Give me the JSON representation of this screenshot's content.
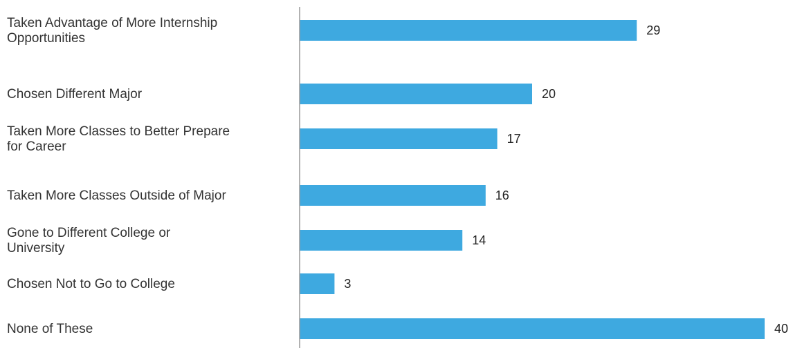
{
  "chart_data": {
    "type": "bar",
    "orientation": "horizontal",
    "categories": [
      "Taken Advantage of More Internship Opportunities",
      "Chosen Different Major",
      "Taken More Classes to Better Prepare for Career",
      "Taken More Classes Outside of Major",
      "Gone to Different College or University",
      "Chosen Not to Go to College",
      "None of These"
    ],
    "values": [
      29,
      20,
      17,
      16,
      14,
      3,
      40
    ],
    "xlim": [
      0,
      40
    ],
    "grid": false,
    "legend": "none",
    "bar_color": "#3ea9e0",
    "axis_color": "#999999"
  }
}
